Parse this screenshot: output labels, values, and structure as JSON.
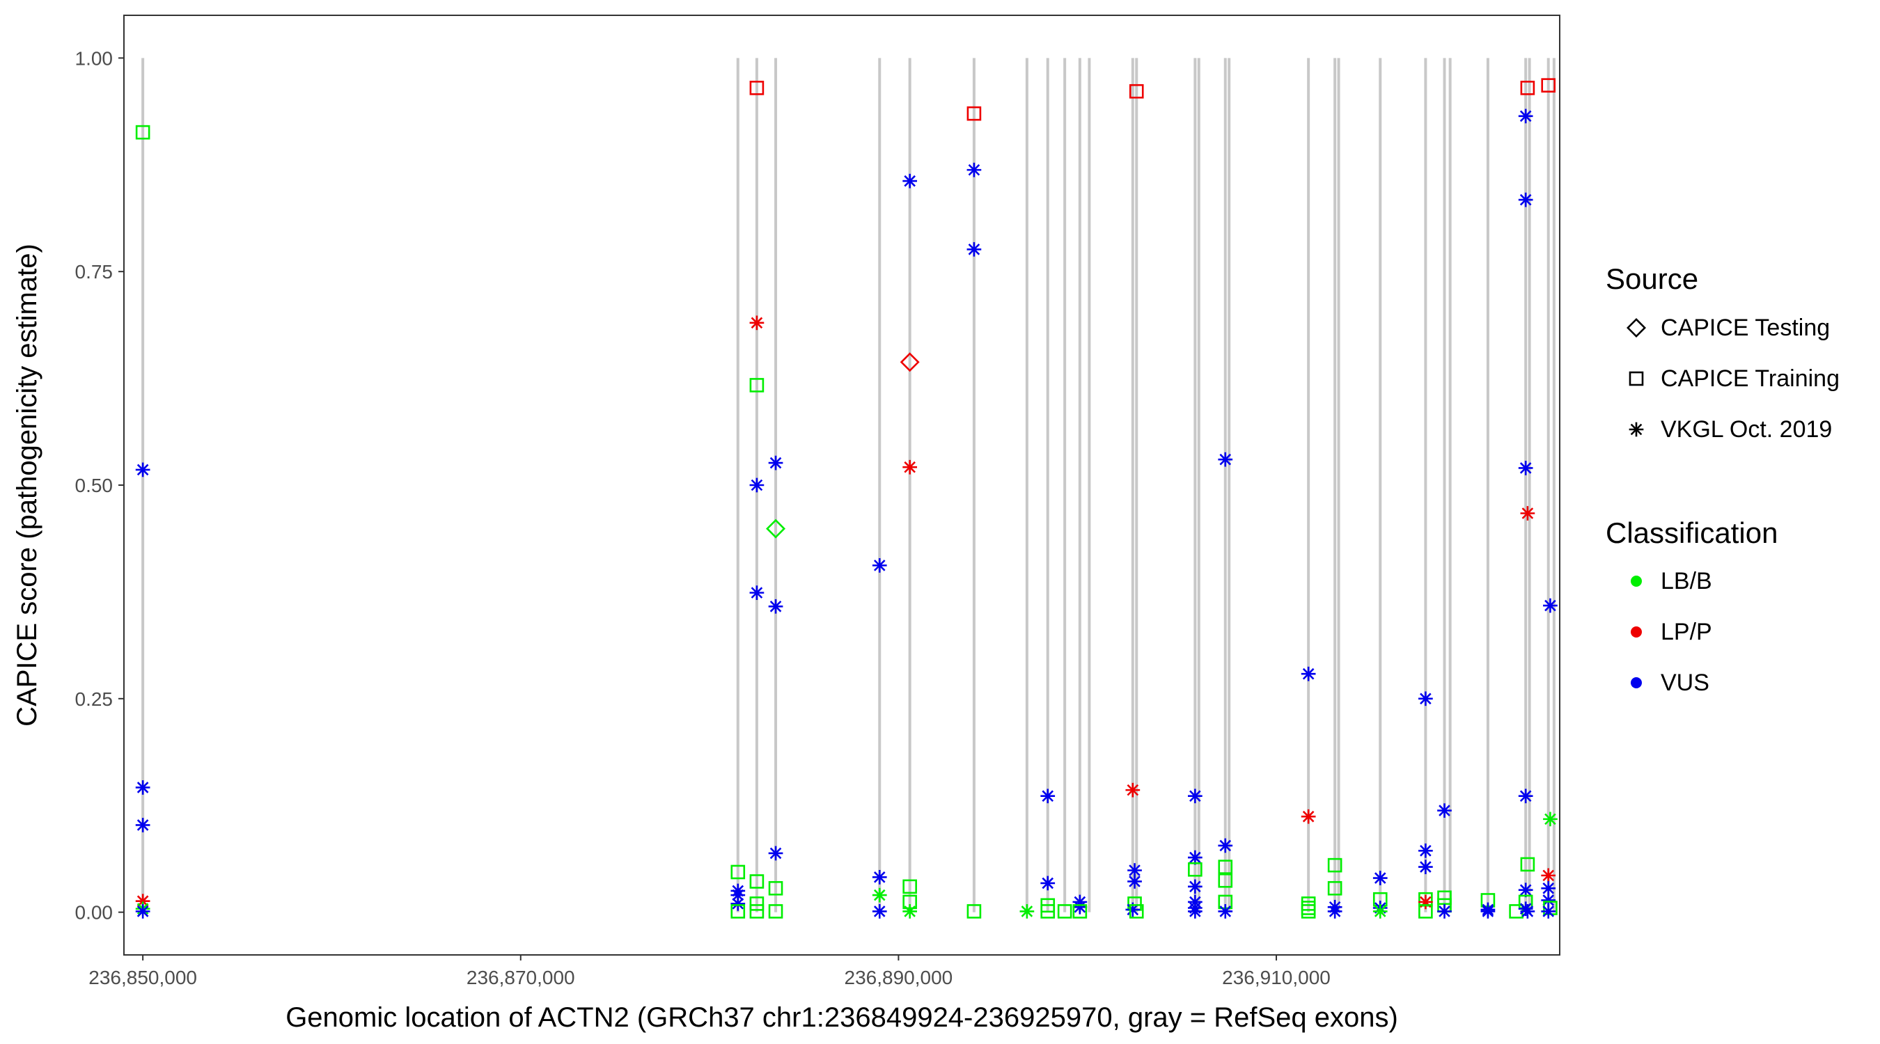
{
  "chart_data": {
    "type": "scatter",
    "xlabel": "Genomic location of ACTN2 (GRCh37 chr1:236849924-236925970, gray = RefSeq exons)",
    "ylabel": "CAPICE score (pathogenicity estimate)",
    "xlim": [
      236849000,
      236925000
    ],
    "ylim": [
      -0.05,
      1.05
    ],
    "x_ticks": [
      236850000,
      236870000,
      236890000,
      236910000
    ],
    "x_tick_labels": [
      "236,850,000",
      "236,870,000",
      "236,890,000",
      "236,910,000"
    ],
    "y_ticks": [
      0,
      0.25,
      0.5,
      0.75,
      1.0
    ],
    "y_tick_labels": [
      "0.00",
      "0.25",
      "0.50",
      "0.75",
      "1.00"
    ],
    "exons": [
      236850000,
      236881500,
      236882500,
      236883500,
      236889000,
      236890600,
      236894000,
      236896800,
      236897900,
      236898800,
      236899600,
      236900100,
      236902400,
      236902600,
      236905700,
      236905900,
      236907300,
      236907500,
      236911700,
      236913100,
      236913300,
      236915500,
      236917900,
      236918900,
      236919200,
      236921200,
      236923200,
      236923400,
      236924400,
      236924700
    ],
    "legend": {
      "source_title": "Source",
      "source_items": [
        {
          "label": "CAPICE Testing",
          "shape": "diamond"
        },
        {
          "label": "CAPICE Training",
          "shape": "square"
        },
        {
          "label": "VKGL Oct. 2019",
          "shape": "asterisk"
        }
      ],
      "class_title": "Classification",
      "class_items": [
        {
          "label": "LB/B",
          "color": "#00ee00"
        },
        {
          "label": "LP/P",
          "color": "#ee0000"
        },
        {
          "label": "VUS",
          "color": "#0000ee"
        }
      ]
    },
    "points": [
      {
        "x": 236850000,
        "y": 0.913,
        "shape": "square",
        "cls": "LB/B"
      },
      {
        "x": 236850000,
        "y": 0.518,
        "shape": "asterisk",
        "cls": "VUS"
      },
      {
        "x": 236850000,
        "y": 0.146,
        "shape": "asterisk",
        "cls": "VUS"
      },
      {
        "x": 236850000,
        "y": 0.102,
        "shape": "asterisk",
        "cls": "VUS"
      },
      {
        "x": 236850000,
        "y": 0.013,
        "shape": "asterisk",
        "cls": "LP/P"
      },
      {
        "x": 236850000,
        "y": 0.004,
        "shape": "asterisk",
        "cls": "LB/B"
      },
      {
        "x": 236850000,
        "y": 0.001,
        "shape": "asterisk",
        "cls": "VUS"
      },
      {
        "x": 236881500,
        "y": 0.047,
        "shape": "square",
        "cls": "LB/B"
      },
      {
        "x": 236881500,
        "y": 0.025,
        "shape": "asterisk",
        "cls": "VUS"
      },
      {
        "x": 236881500,
        "y": 0.02,
        "shape": "asterisk",
        "cls": "VUS"
      },
      {
        "x": 236881500,
        "y": 0.01,
        "shape": "asterisk",
        "cls": "VUS"
      },
      {
        "x": 236881500,
        "y": 0.001,
        "shape": "square",
        "cls": "LB/B"
      },
      {
        "x": 236882500,
        "y": 0.965,
        "shape": "square",
        "cls": "LP/P"
      },
      {
        "x": 236882500,
        "y": 0.69,
        "shape": "asterisk",
        "cls": "LP/P"
      },
      {
        "x": 236882500,
        "y": 0.617,
        "shape": "square",
        "cls": "LB/B"
      },
      {
        "x": 236882500,
        "y": 0.5,
        "shape": "asterisk",
        "cls": "VUS"
      },
      {
        "x": 236882500,
        "y": 0.374,
        "shape": "asterisk",
        "cls": "VUS"
      },
      {
        "x": 236882500,
        "y": 0.036,
        "shape": "square",
        "cls": "LB/B"
      },
      {
        "x": 236882500,
        "y": 0.01,
        "shape": "square",
        "cls": "LB/B"
      },
      {
        "x": 236882500,
        "y": 0.001,
        "shape": "square",
        "cls": "LB/B"
      },
      {
        "x": 236883500,
        "y": 0.526,
        "shape": "asterisk",
        "cls": "VUS"
      },
      {
        "x": 236883500,
        "y": 0.449,
        "shape": "diamond",
        "cls": "LB/B"
      },
      {
        "x": 236883500,
        "y": 0.358,
        "shape": "asterisk",
        "cls": "VUS"
      },
      {
        "x": 236883500,
        "y": 0.069,
        "shape": "asterisk",
        "cls": "VUS"
      },
      {
        "x": 236883500,
        "y": 0.028,
        "shape": "square",
        "cls": "LB/B"
      },
      {
        "x": 236883500,
        "y": 0.001,
        "shape": "square",
        "cls": "LB/B"
      },
      {
        "x": 236889000,
        "y": 0.406,
        "shape": "asterisk",
        "cls": "VUS"
      },
      {
        "x": 236889000,
        "y": 0.041,
        "shape": "asterisk",
        "cls": "VUS"
      },
      {
        "x": 236889000,
        "y": 0.02,
        "shape": "asterisk",
        "cls": "LB/B"
      },
      {
        "x": 236889000,
        "y": 0.001,
        "shape": "asterisk",
        "cls": "VUS"
      },
      {
        "x": 236890600,
        "y": 0.856,
        "shape": "asterisk",
        "cls": "VUS"
      },
      {
        "x": 236890600,
        "y": 0.644,
        "shape": "diamond",
        "cls": "LP/P"
      },
      {
        "x": 236890600,
        "y": 0.521,
        "shape": "asterisk",
        "cls": "LP/P"
      },
      {
        "x": 236890600,
        "y": 0.03,
        "shape": "square",
        "cls": "LB/B"
      },
      {
        "x": 236890600,
        "y": 0.012,
        "shape": "square",
        "cls": "LB/B"
      },
      {
        "x": 236890600,
        "y": 0.001,
        "shape": "asterisk",
        "cls": "LB/B"
      },
      {
        "x": 236894000,
        "y": 0.935,
        "shape": "square",
        "cls": "LP/P"
      },
      {
        "x": 236894000,
        "y": 0.869,
        "shape": "asterisk",
        "cls": "VUS"
      },
      {
        "x": 236894000,
        "y": 0.776,
        "shape": "asterisk",
        "cls": "VUS"
      },
      {
        "x": 236894000,
        "y": 0.001,
        "shape": "square",
        "cls": "LB/B"
      },
      {
        "x": 236896800,
        "y": 0.001,
        "shape": "asterisk",
        "cls": "LB/B"
      },
      {
        "x": 236897900,
        "y": 0.136,
        "shape": "asterisk",
        "cls": "VUS"
      },
      {
        "x": 236897900,
        "y": 0.034,
        "shape": "asterisk",
        "cls": "VUS"
      },
      {
        "x": 236897900,
        "y": 0.008,
        "shape": "square",
        "cls": "LB/B"
      },
      {
        "x": 236897900,
        "y": 0.001,
        "shape": "square",
        "cls": "LB/B"
      },
      {
        "x": 236898800,
        "y": 0.001,
        "shape": "square",
        "cls": "LB/B"
      },
      {
        "x": 236899600,
        "y": 0.012,
        "shape": "asterisk",
        "cls": "VUS"
      },
      {
        "x": 236899600,
        "y": 0.006,
        "shape": "asterisk",
        "cls": "VUS"
      },
      {
        "x": 236899600,
        "y": 0.001,
        "shape": "square",
        "cls": "LB/B"
      },
      {
        "x": 236902400,
        "y": 0.143,
        "shape": "asterisk",
        "cls": "LP/P"
      },
      {
        "x": 236902500,
        "y": 0.049,
        "shape": "asterisk",
        "cls": "VUS"
      },
      {
        "x": 236902500,
        "y": 0.036,
        "shape": "asterisk",
        "cls": "VUS"
      },
      {
        "x": 236902500,
        "y": 0.01,
        "shape": "square",
        "cls": "LB/B"
      },
      {
        "x": 236902400,
        "y": 0.003,
        "shape": "asterisk",
        "cls": "VUS"
      },
      {
        "x": 236902600,
        "y": 0.961,
        "shape": "square",
        "cls": "LP/P"
      },
      {
        "x": 236902600,
        "y": 0.001,
        "shape": "square",
        "cls": "LB/B"
      },
      {
        "x": 236905700,
        "y": 0.136,
        "shape": "asterisk",
        "cls": "VUS"
      },
      {
        "x": 236905700,
        "y": 0.064,
        "shape": "asterisk",
        "cls": "VUS"
      },
      {
        "x": 236905700,
        "y": 0.05,
        "shape": "square",
        "cls": "LB/B"
      },
      {
        "x": 236905700,
        "y": 0.03,
        "shape": "asterisk",
        "cls": "VUS"
      },
      {
        "x": 236905700,
        "y": 0.012,
        "shape": "asterisk",
        "cls": "VUS"
      },
      {
        "x": 236905700,
        "y": 0.005,
        "shape": "asterisk",
        "cls": "VUS"
      },
      {
        "x": 236905700,
        "y": 0.001,
        "shape": "asterisk",
        "cls": "VUS"
      },
      {
        "x": 236907300,
        "y": 0.53,
        "shape": "asterisk",
        "cls": "VUS"
      },
      {
        "x": 236907300,
        "y": 0.078,
        "shape": "asterisk",
        "cls": "VUS"
      },
      {
        "x": 236907300,
        "y": 0.053,
        "shape": "square",
        "cls": "LB/B"
      },
      {
        "x": 236907300,
        "y": 0.037,
        "shape": "square",
        "cls": "LB/B"
      },
      {
        "x": 236907300,
        "y": 0.012,
        "shape": "square",
        "cls": "LB/B"
      },
      {
        "x": 236907300,
        "y": 0.001,
        "shape": "asterisk",
        "cls": "VUS"
      },
      {
        "x": 236911700,
        "y": 0.279,
        "shape": "asterisk",
        "cls": "VUS"
      },
      {
        "x": 236911700,
        "y": 0.112,
        "shape": "asterisk",
        "cls": "LP/P"
      },
      {
        "x": 236911700,
        "y": 0.01,
        "shape": "square",
        "cls": "LB/B"
      },
      {
        "x": 236911700,
        "y": 0.005,
        "shape": "square",
        "cls": "LB/B"
      },
      {
        "x": 236911700,
        "y": 0.001,
        "shape": "square",
        "cls": "LB/B"
      },
      {
        "x": 236913100,
        "y": 0.055,
        "shape": "square",
        "cls": "LB/B"
      },
      {
        "x": 236913100,
        "y": 0.028,
        "shape": "square",
        "cls": "LB/B"
      },
      {
        "x": 236913100,
        "y": 0.006,
        "shape": "asterisk",
        "cls": "VUS"
      },
      {
        "x": 236913100,
        "y": 0.001,
        "shape": "asterisk",
        "cls": "VUS"
      },
      {
        "x": 236915500,
        "y": 0.04,
        "shape": "asterisk",
        "cls": "VUS"
      },
      {
        "x": 236915500,
        "y": 0.015,
        "shape": "square",
        "cls": "LB/B"
      },
      {
        "x": 236915500,
        "y": 0.005,
        "shape": "asterisk",
        "cls": "VUS"
      },
      {
        "x": 236915500,
        "y": 0.001,
        "shape": "asterisk",
        "cls": "LB/B"
      },
      {
        "x": 236917900,
        "y": 0.25,
        "shape": "asterisk",
        "cls": "VUS"
      },
      {
        "x": 236917900,
        "y": 0.072,
        "shape": "asterisk",
        "cls": "VUS"
      },
      {
        "x": 236917900,
        "y": 0.053,
        "shape": "asterisk",
        "cls": "VUS"
      },
      {
        "x": 236917900,
        "y": 0.015,
        "shape": "square",
        "cls": "LB/B"
      },
      {
        "x": 236917900,
        "y": 0.012,
        "shape": "asterisk",
        "cls": "LP/P"
      },
      {
        "x": 236917900,
        "y": 0.001,
        "shape": "square",
        "cls": "LB/B"
      },
      {
        "x": 236918900,
        "y": 0.119,
        "shape": "asterisk",
        "cls": "VUS"
      },
      {
        "x": 236918900,
        "y": 0.017,
        "shape": "square",
        "cls": "LB/B"
      },
      {
        "x": 236918900,
        "y": 0.008,
        "shape": "square",
        "cls": "LB/B"
      },
      {
        "x": 236918900,
        "y": 0.001,
        "shape": "asterisk",
        "cls": "VUS"
      },
      {
        "x": 236921200,
        "y": 0.014,
        "shape": "square",
        "cls": "LB/B"
      },
      {
        "x": 236921200,
        "y": 0.003,
        "shape": "asterisk",
        "cls": "VUS"
      },
      {
        "x": 236921200,
        "y": 0.001,
        "shape": "asterisk",
        "cls": "VUS"
      },
      {
        "x": 236922700,
        "y": 0.001,
        "shape": "square",
        "cls": "LB/B"
      },
      {
        "x": 236923200,
        "y": 0.932,
        "shape": "asterisk",
        "cls": "VUS"
      },
      {
        "x": 236923200,
        "y": 0.834,
        "shape": "asterisk",
        "cls": "VUS"
      },
      {
        "x": 236923200,
        "y": 0.52,
        "shape": "asterisk",
        "cls": "VUS"
      },
      {
        "x": 236923200,
        "y": 0.136,
        "shape": "asterisk",
        "cls": "VUS"
      },
      {
        "x": 236923200,
        "y": 0.026,
        "shape": "asterisk",
        "cls": "VUS"
      },
      {
        "x": 236923200,
        "y": 0.012,
        "shape": "square",
        "cls": "LB/B"
      },
      {
        "x": 236923200,
        "y": 0.004,
        "shape": "asterisk",
        "cls": "VUS"
      },
      {
        "x": 236923300,
        "y": 0.965,
        "shape": "square",
        "cls": "LP/P"
      },
      {
        "x": 236923300,
        "y": 0.467,
        "shape": "asterisk",
        "cls": "LP/P"
      },
      {
        "x": 236923300,
        "y": 0.056,
        "shape": "square",
        "cls": "LB/B"
      },
      {
        "x": 236923300,
        "y": 0.001,
        "shape": "asterisk",
        "cls": "VUS"
      },
      {
        "x": 236924400,
        "y": 0.968,
        "shape": "square",
        "cls": "LP/P"
      },
      {
        "x": 236924500,
        "y": 0.359,
        "shape": "asterisk",
        "cls": "VUS"
      },
      {
        "x": 236924500,
        "y": 0.109,
        "shape": "asterisk",
        "cls": "LB/B"
      },
      {
        "x": 236924400,
        "y": 0.043,
        "shape": "asterisk",
        "cls": "LP/P"
      },
      {
        "x": 236924400,
        "y": 0.028,
        "shape": "asterisk",
        "cls": "VUS"
      },
      {
        "x": 236924400,
        "y": 0.014,
        "shape": "asterisk",
        "cls": "VUS"
      },
      {
        "x": 236924500,
        "y": 0.005,
        "shape": "square",
        "cls": "LB/B"
      },
      {
        "x": 236924400,
        "y": 0.001,
        "shape": "asterisk",
        "cls": "VUS"
      }
    ]
  }
}
